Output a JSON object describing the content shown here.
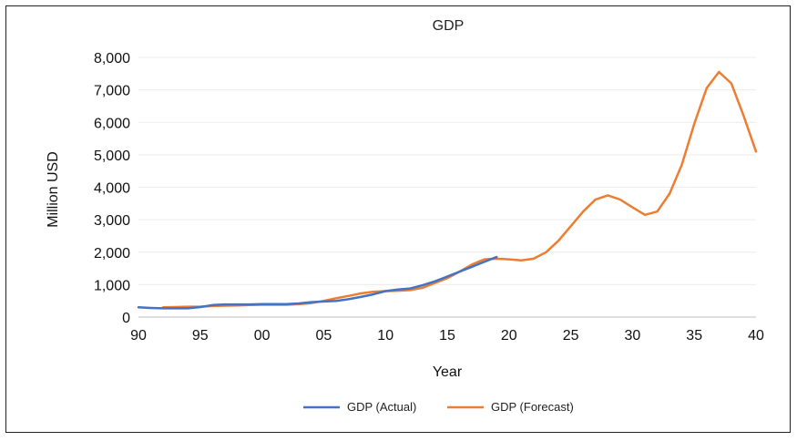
{
  "chart_data": {
    "type": "line",
    "title": "GDP",
    "xlabel": "Year",
    "ylabel": "Million USD",
    "xlim": [
      1990,
      2040
    ],
    "ylim": [
      0,
      8000
    ],
    "x_ticks": [
      1990,
      1995,
      2000,
      2005,
      2010,
      2015,
      2020,
      2025,
      2030,
      2035,
      2040
    ],
    "x_tick_labels": [
      "90",
      "95",
      "00",
      "05",
      "10",
      "15",
      "20",
      "25",
      "30",
      "35",
      "40"
    ],
    "y_ticks": [
      0,
      1000,
      2000,
      3000,
      4000,
      5000,
      6000,
      7000,
      8000
    ],
    "y_tick_labels": [
      "0",
      "1,000",
      "2,000",
      "3,000",
      "4,000",
      "5,000",
      "6,000",
      "7,000",
      "8,000"
    ],
    "grid": "horizontal",
    "legend_position": "bottom",
    "series": [
      {
        "name": "GDP (Actual)",
        "color": "#4472c4",
        "x": [
          1990,
          1991,
          1992,
          1993,
          1994,
          1995,
          1996,
          1997,
          1998,
          1999,
          2000,
          2001,
          2002,
          2003,
          2004,
          2005,
          2006,
          2007,
          2008,
          2009,
          2010,
          2011,
          2012,
          2013,
          2014,
          2015,
          2016,
          2017,
          2018,
          2019
        ],
        "values": [
          300,
          280,
          270,
          270,
          270,
          310,
          370,
          390,
          390,
          390,
          400,
          400,
          400,
          420,
          460,
          480,
          500,
          550,
          620,
          700,
          800,
          850,
          880,
          980,
          1100,
          1250,
          1400,
          1550,
          1700,
          1850
        ]
      },
      {
        "name": "GDP (Forecast)",
        "color": "#ed7d31",
        "x": [
          1992,
          1993,
          1994,
          1995,
          1996,
          1997,
          1998,
          1999,
          2000,
          2001,
          2002,
          2003,
          2004,
          2005,
          2006,
          2007,
          2008,
          2009,
          2010,
          2011,
          2012,
          2013,
          2014,
          2015,
          2016,
          2017,
          2018,
          2019,
          2020,
          2021,
          2022,
          2023,
          2024,
          2025,
          2026,
          2027,
          2028,
          2029,
          2030,
          2031,
          2032,
          2033,
          2034,
          2035,
          2036,
          2037,
          2038,
          2039,
          2040
        ],
        "values": [
          300,
          310,
          320,
          320,
          340,
          350,
          360,
          370,
          380,
          380,
          380,
          400,
          430,
          500,
          580,
          650,
          730,
          780,
          800,
          810,
          830,
          900,
          1050,
          1200,
          1400,
          1620,
          1780,
          1800,
          1780,
          1750,
          1800,
          2000,
          2350,
          2800,
          3250,
          3620,
          3750,
          3620,
          3380,
          3150,
          3250,
          3800,
          4700,
          5950,
          7050,
          7550,
          7200,
          6200,
          5100
        ]
      }
    ]
  }
}
